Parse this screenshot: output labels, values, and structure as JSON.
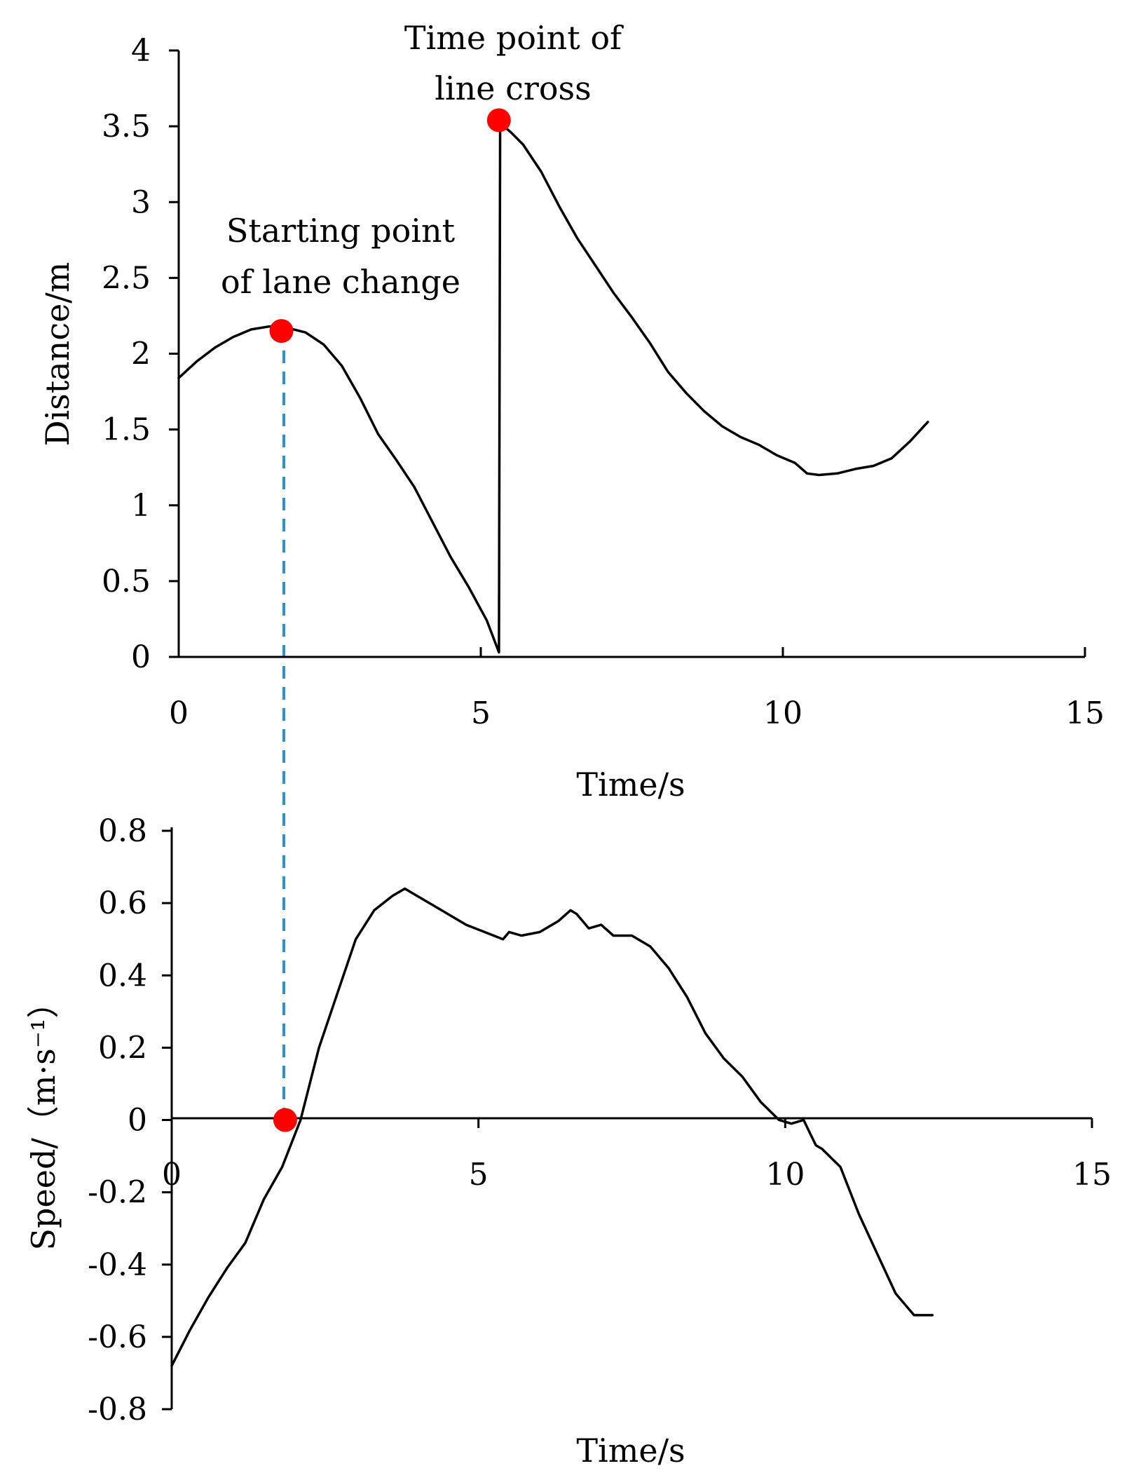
{
  "chart_data": [
    {
      "type": "line",
      "title": "",
      "xlabel": "Time/s",
      "ylabel": "Distance/m",
      "xlim": [
        0,
        15
      ],
      "ylim": [
        0,
        4
      ],
      "x_ticks": [
        "0",
        "5",
        "10",
        "15"
      ],
      "y_ticks": [
        "0",
        "0.5",
        "1",
        "1.5",
        "2",
        "2.5",
        "3",
        "3.5",
        "4"
      ],
      "series": [
        {
          "name": "Distance",
          "color": "#000000",
          "x": [
            0,
            0.3,
            0.6,
            0.9,
            1.2,
            1.5,
            1.8,
            2.1,
            2.4,
            2.7,
            3.0,
            3.3,
            3.6,
            3.9,
            4.2,
            4.5,
            4.8,
            5.1,
            5.3,
            5.32,
            5.5,
            5.7,
            6.0,
            6.3,
            6.6,
            6.9,
            7.2,
            7.5,
            7.8,
            8.1,
            8.4,
            8.7,
            9.0,
            9.3,
            9.6,
            9.9,
            10.2,
            10.4,
            10.6,
            10.9,
            11.2,
            11.5,
            11.8,
            12.1,
            12.4
          ],
          "y": [
            1.84,
            1.95,
            2.04,
            2.11,
            2.16,
            2.18,
            2.17,
            2.14,
            2.06,
            1.92,
            1.71,
            1.47,
            1.3,
            1.12,
            0.89,
            0.66,
            0.46,
            0.24,
            0.03,
            3.52,
            3.46,
            3.38,
            3.2,
            2.97,
            2.76,
            2.58,
            2.4,
            2.24,
            2.07,
            1.88,
            1.74,
            1.62,
            1.52,
            1.45,
            1.4,
            1.33,
            1.28,
            1.21,
            1.2,
            1.21,
            1.24,
            1.26,
            1.31,
            1.42,
            1.55
          ]
        }
      ],
      "annotations": [
        {
          "name": "Starting point of lane change",
          "lines": [
            "Starting point",
            "of lane change"
          ],
          "x": 1.7,
          "y": 2.15,
          "marker_color": "#ff0000"
        },
        {
          "name": "Time point of line cross",
          "lines": [
            "Time point of",
            "line cross"
          ],
          "x": 5.3,
          "y": 3.54,
          "marker_color": "#ff0000"
        }
      ]
    },
    {
      "type": "line",
      "title": "",
      "xlabel": "Time/s",
      "ylabel": "Speed/（m·s⁻¹）",
      "xlim": [
        0,
        15
      ],
      "ylim": [
        -0.8,
        0.8
      ],
      "x_ticks": [
        "0",
        "5",
        "10",
        "15"
      ],
      "y_ticks": [
        "-0.8",
        "-0.6",
        "-0.4",
        "-0.2",
        "0",
        "0.2",
        "0.4",
        "0.6",
        "0.8"
      ],
      "series": [
        {
          "name": "Speed",
          "color": "#000000",
          "x": [
            0,
            0.3,
            0.6,
            0.9,
            1.2,
            1.5,
            1.8,
            2.1,
            2.4,
            2.7,
            3.0,
            3.3,
            3.6,
            3.8,
            3.9,
            4.2,
            4.5,
            4.8,
            5.1,
            5.4,
            5.5,
            5.7,
            6.0,
            6.3,
            6.5,
            6.6,
            6.8,
            7.0,
            7.2,
            7.5,
            7.8,
            8.1,
            8.4,
            8.7,
            9.0,
            9.3,
            9.6,
            9.9,
            10.1,
            10.3,
            10.5,
            10.6,
            10.9,
            11.2,
            11.5,
            11.8,
            12.1,
            12.4
          ],
          "y": [
            -0.68,
            -0.58,
            -0.49,
            -0.41,
            -0.34,
            -0.22,
            -0.13,
            0.0,
            0.2,
            0.35,
            0.5,
            0.58,
            0.62,
            0.64,
            0.63,
            0.6,
            0.57,
            0.54,
            0.52,
            0.5,
            0.52,
            0.51,
            0.52,
            0.55,
            0.58,
            0.57,
            0.53,
            0.54,
            0.51,
            0.51,
            0.48,
            0.42,
            0.34,
            0.24,
            0.17,
            0.12,
            0.05,
            0.0,
            -0.01,
            0.0,
            -0.07,
            -0.08,
            -0.13,
            -0.26,
            -0.37,
            -0.48,
            -0.54,
            -0.54
          ]
        }
      ],
      "annotations": [
        {
          "name": "Starting point of lane change marker",
          "x": 1.85,
          "y": 0.0,
          "marker_color": "#ff0000"
        }
      ],
      "guide_line": {
        "x": 1.8,
        "color": "#2e90d9",
        "style": "dashed"
      }
    }
  ]
}
